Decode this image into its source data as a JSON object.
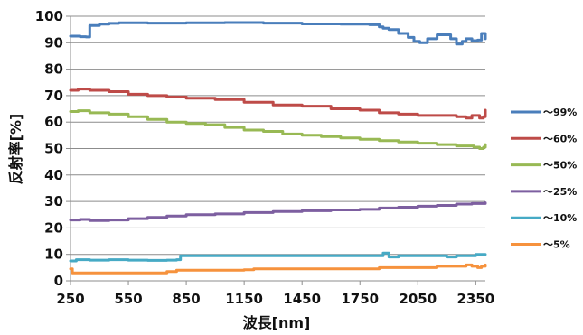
{
  "chart_data": {
    "type": "line",
    "xlabel": "波長[nm]",
    "ylabel": "反射率[%]",
    "xlim": [
      250,
      2400
    ],
    "ylim": [
      0,
      100
    ],
    "xticks": [
      250,
      550,
      850,
      1150,
      1450,
      1750,
      2050,
      2350
    ],
    "yticks": [
      0,
      10,
      20,
      30,
      40,
      50,
      60,
      70,
      80,
      90,
      100
    ],
    "grid": "horizontal",
    "legend_position": "right",
    "series": [
      {
        "name": "～99%",
        "color": "#4a7ebb",
        "x": [
          250,
          300,
          330,
          350,
          400,
          450,
          500,
          550,
          650,
          850,
          1050,
          1250,
          1450,
          1650,
          1800,
          1850,
          1870,
          1900,
          1950,
          2000,
          2030,
          2060,
          2100,
          2150,
          2200,
          2220,
          2250,
          2280,
          2300,
          2330,
          2360,
          2380,
          2400
        ],
        "y": [
          92.5,
          92.3,
          92.2,
          96.5,
          97.0,
          97.3,
          97.5,
          97.5,
          97.4,
          97.5,
          97.6,
          97.4,
          97.1,
          97.0,
          96.8,
          96.0,
          95.5,
          95.0,
          93.5,
          92.0,
          90.5,
          90.0,
          91.5,
          93.0,
          93.0,
          91.5,
          89.5,
          90.5,
          91.5,
          90.8,
          91.0,
          93.5,
          91.5
        ]
      },
      {
        "name": "～60%",
        "color": "#be4b48",
        "x": [
          250,
          290,
          350,
          450,
          550,
          650,
          750,
          850,
          1000,
          1150,
          1300,
          1450,
          1600,
          1750,
          1850,
          1950,
          2050,
          2150,
          2250,
          2300,
          2330,
          2370,
          2390,
          2400
        ],
        "y": [
          72.0,
          72.5,
          72.0,
          71.5,
          70.5,
          70.0,
          69.5,
          69.0,
          68.5,
          67.5,
          66.5,
          66.0,
          65.0,
          64.5,
          63.5,
          63.0,
          62.5,
          62.5,
          62.0,
          61.5,
          62.5,
          61.5,
          62.0,
          64.5
        ]
      },
      {
        "name": "～50%",
        "color": "#98b954",
        "x": [
          250,
          290,
          350,
          450,
          550,
          650,
          750,
          850,
          950,
          1050,
          1150,
          1250,
          1350,
          1450,
          1550,
          1650,
          1750,
          1850,
          1950,
          2050,
          2150,
          2250,
          2300,
          2340,
          2370,
          2390,
          2400
        ],
        "y": [
          64.0,
          64.3,
          63.5,
          63.0,
          62.0,
          61.0,
          60.0,
          59.5,
          59.0,
          58.0,
          57.0,
          56.5,
          55.5,
          55.0,
          54.5,
          54.0,
          53.5,
          53.0,
          52.5,
          52.0,
          51.5,
          51.0,
          51.0,
          50.5,
          50.0,
          50.5,
          51.5
        ]
      },
      {
        "name": "～25%",
        "color": "#7d5fa0",
        "x": [
          250,
          300,
          350,
          450,
          550,
          650,
          750,
          850,
          1000,
          1150,
          1300,
          1450,
          1600,
          1750,
          1850,
          1950,
          2050,
          2150,
          2250,
          2330,
          2400
        ],
        "y": [
          23.0,
          23.2,
          22.8,
          23.0,
          23.5,
          24.0,
          24.5,
          25.0,
          25.3,
          25.8,
          26.2,
          26.5,
          26.8,
          27.0,
          27.5,
          27.8,
          28.2,
          28.5,
          29.0,
          29.2,
          29.5
        ]
      },
      {
        "name": "～10%",
        "color": "#46aac5",
        "x": [
          250,
          280,
          350,
          450,
          550,
          650,
          750,
          800,
          820,
          850,
          1000,
          1150,
          1300,
          1450,
          1600,
          1750,
          1850,
          1870,
          1900,
          1950,
          2050,
          2150,
          2200,
          2250,
          2300,
          2350,
          2400
        ],
        "y": [
          7.5,
          8.0,
          7.8,
          8.0,
          7.8,
          7.7,
          7.8,
          8.0,
          9.5,
          9.5,
          9.5,
          9.5,
          9.5,
          9.5,
          9.5,
          9.5,
          9.5,
          10.5,
          9.0,
          9.5,
          9.5,
          9.5,
          9.0,
          9.5,
          9.5,
          10.0,
          10.0
        ]
      },
      {
        "name": "～5%",
        "color": "#f6923d",
        "x": [
          250,
          260,
          280,
          350,
          450,
          550,
          650,
          750,
          800,
          850,
          1000,
          1150,
          1200,
          1300,
          1450,
          1600,
          1750,
          1850,
          1950,
          2050,
          2150,
          2250,
          2300,
          2330,
          2360,
          2380,
          2400
        ],
        "y": [
          4.5,
          3.0,
          3.0,
          3.0,
          3.0,
          3.0,
          3.0,
          3.5,
          4.0,
          4.0,
          4.0,
          4.2,
          4.5,
          4.5,
          4.5,
          4.5,
          4.5,
          5.0,
          5.0,
          5.0,
          5.5,
          5.5,
          6.0,
          5.5,
          5.0,
          5.5,
          6.0
        ]
      }
    ]
  }
}
